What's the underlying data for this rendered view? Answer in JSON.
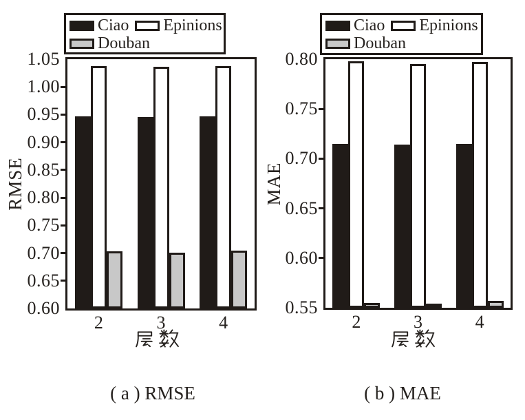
{
  "figure": {
    "background": "#ffffff",
    "captions": {
      "a": "( a ) RMSE",
      "b": "( b ) MAE"
    }
  },
  "colors": {
    "ink": "#201b18",
    "text": "#26221f",
    "bar_black": "#201b18",
    "bar_white": "#ffffff",
    "bar_gray": "#c8c8c8"
  },
  "chart_data": [
    {
      "type": "bar",
      "caption": "( a ) RMSE",
      "ylabel": "RMSE",
      "xlabel": "层数",
      "categories": [
        "2",
        "3",
        "4"
      ],
      "ylim": [
        0.6,
        1.05
      ],
      "ytick_step": 0.05,
      "grid": false,
      "legend_position": "top",
      "legend_entries": [
        "Ciao",
        "Epinions",
        "Douban"
      ],
      "series": [
        {
          "name": "Ciao",
          "color": "#201b18",
          "values": [
            0.947,
            0.946,
            0.947
          ]
        },
        {
          "name": "Epinions",
          "color": "#ffffff",
          "values": [
            1.038,
            1.036,
            1.038
          ]
        },
        {
          "name": "Douban",
          "color": "#c8c8c8",
          "values": [
            0.703,
            0.701,
            0.704
          ]
        }
      ]
    },
    {
      "type": "bar",
      "caption": "( b ) MAE",
      "ylabel": "MAE",
      "xlabel": "层数",
      "categories": [
        "2",
        "3",
        "4"
      ],
      "ylim": [
        0.55,
        0.8
      ],
      "ytick_step": 0.05,
      "grid": false,
      "legend_position": "top",
      "legend_entries": [
        "Ciao",
        "Epinions",
        "Douban"
      ],
      "series": [
        {
          "name": "Ciao",
          "color": "#201b18",
          "values": [
            0.715,
            0.714,
            0.715
          ]
        },
        {
          "name": "Epinions",
          "color": "#ffffff",
          "values": [
            0.798,
            0.795,
            0.797
          ]
        },
        {
          "name": "Douban",
          "color": "#c8c8c8",
          "values": [
            0.555,
            0.554,
            0.557
          ]
        }
      ]
    }
  ]
}
